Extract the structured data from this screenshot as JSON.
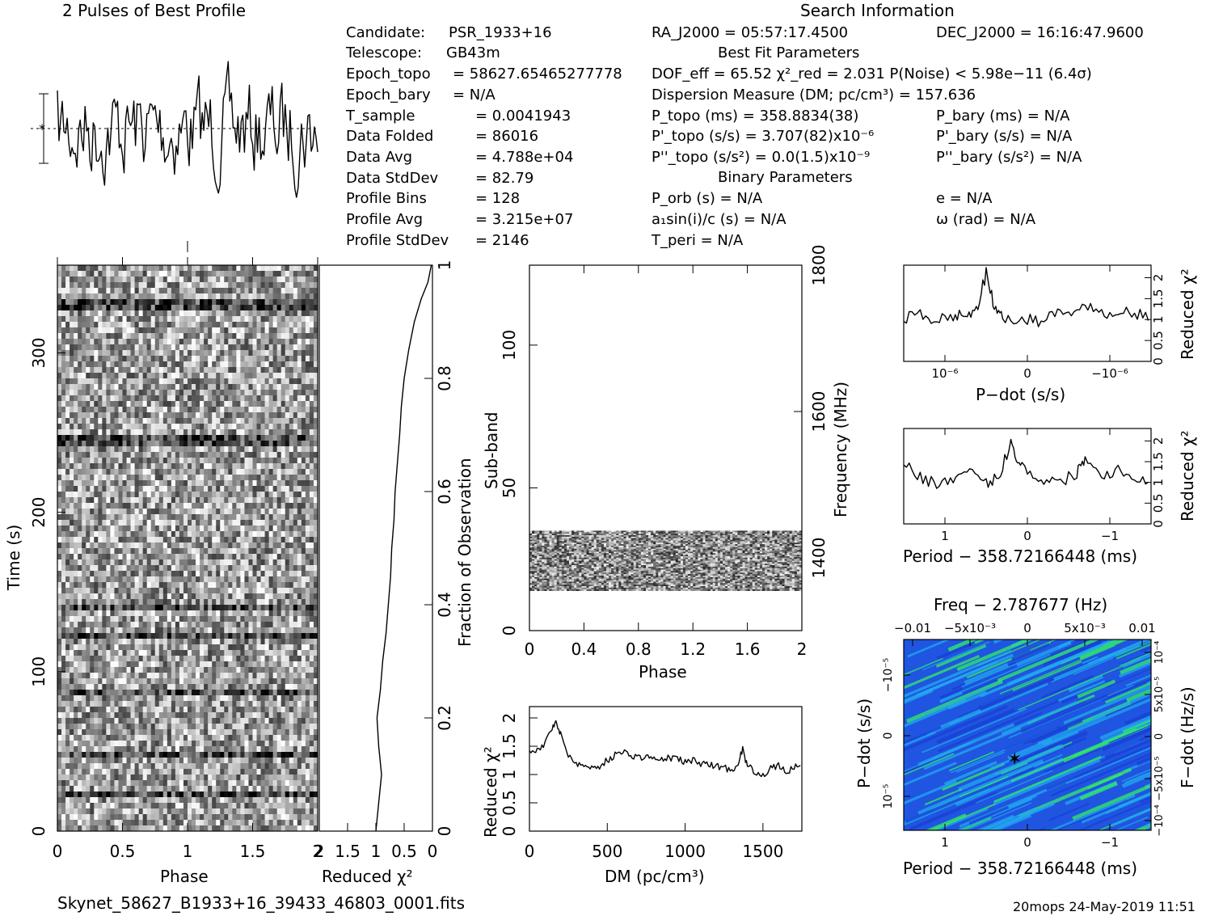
{
  "header": {
    "profile_title": "2 Pulses of Best Profile",
    "search_title": "Search Information",
    "best_fit_title": "Best Fit Parameters",
    "binary_title": "Binary Parameters"
  },
  "info_left": [
    {
      "label": "Candidate:",
      "value": "PSR_1933+16"
    },
    {
      "label": "Telescope:",
      "value": "GB43m"
    },
    {
      "label": "Epoch_topo",
      "value": "= 58627.65465277778"
    },
    {
      "label": "Epoch_bary",
      "value": "= N/A"
    },
    {
      "label": "T_sample",
      "value": "=  0.0041943"
    },
    {
      "label": "Data Folded",
      "value": "=  86016"
    },
    {
      "label": "Data Avg",
      "value": "=  4.788e+04"
    },
    {
      "label": "Data StdDev",
      "value": "=  82.79"
    },
    {
      "label": "Profile Bins",
      "value": "=  128"
    },
    {
      "label": "Profile Avg",
      "value": "=  3.215e+07"
    },
    {
      "label": "Profile StdDev",
      "value": "=  2146"
    }
  ],
  "info_right": {
    "ra": "RA_J2000 = 05:57:17.4500",
    "dec": "DEC_J2000 = 16:16:47.9600",
    "dof": "DOF_eff = 65.52  χ²_red = 2.031  P(Noise) < 5.98e−11   (6.4σ)",
    "dm": "Dispersion Measure (DM; pc/cm³) = 157.636",
    "p_topo": "P_topo (ms) =  358.8834(38)",
    "pd_topo": "P'_topo (s/s) =  3.707(82)x10⁻⁶",
    "pdd_topo": "P''_topo (s/s²) = 0.0(1.5)x10⁻⁹",
    "p_bary": "P_bary (ms) = N/A",
    "pd_bary": "P'_bary (s/s) = N/A",
    "pdd_bary": "P''_bary (s/s²) = N/A",
    "p_orb": "P_orb (s) = N/A",
    "a1sini": "a₁sin(i)/c (s) = N/A",
    "t_peri": "T_peri = N/A",
    "ecc": "e = N/A",
    "omega": "ω (rad) = N/A"
  },
  "footer": {
    "filename": "Skynet_58627_B1933+16_39433_46803_0001.fits",
    "stamp": "20mops 24-May-2019 11:51"
  },
  "chart_data": [
    {
      "type": "line",
      "title": "2 Pulses of Best Profile",
      "xlabel": "",
      "ylabel": "",
      "note": "noisy profile spanning 2 pulses; amplitudes in profile sigma"
    },
    {
      "type": "heatmap",
      "xlabel": "Phase",
      "ylabel": "Time (s)",
      "xlim": [
        0,
        2
      ],
      "ylim": [
        0,
        355
      ],
      "x_ticks": [
        "0",
        "0.5",
        "1",
        "1.5",
        "2"
      ],
      "y_ticks": [
        "0",
        "100",
        "200",
        "300"
      ],
      "colormap": "grayscale"
    },
    {
      "type": "line",
      "xlabel": "Reduced χ²",
      "ylabel": "Fraction of Observation",
      "xlim": [
        2,
        0
      ],
      "ylim": [
        0,
        1
      ],
      "x_ticks": [
        "2",
        "1.5",
        "1",
        "0.5",
        "0"
      ],
      "y_ticks": [
        "0",
        "0.2",
        "0.4",
        "0.6",
        "0.8",
        "1"
      ],
      "x": [
        1.0,
        0.95,
        0.9,
        0.95,
        0.98,
        0.92,
        0.88,
        0.82,
        0.78,
        0.74,
        0.72,
        0.68,
        0.66,
        0.62,
        0.58,
        0.55,
        0.5,
        0.42,
        0.32,
        0.2,
        0.08,
        0.02
      ],
      "y": [
        0.0,
        0.05,
        0.1,
        0.15,
        0.2,
        0.25,
        0.3,
        0.35,
        0.4,
        0.45,
        0.5,
        0.55,
        0.6,
        0.65,
        0.7,
        0.75,
        0.8,
        0.85,
        0.9,
        0.94,
        0.97,
        1.0
      ]
    },
    {
      "type": "heatmap",
      "xlabel": "Phase",
      "ylabel": "Sub-band",
      "y2label": "Frequency (MHz)",
      "xlim": [
        0,
        2
      ],
      "ylim": [
        0,
        128
      ],
      "x_ticks": [
        "0",
        "0.4",
        "0.8",
        "1.2",
        "1.6",
        "2"
      ],
      "y_ticks": [
        "0",
        "50",
        "100"
      ],
      "y2_ticks": [
        "1400",
        "1600",
        "1800"
      ],
      "populated_subbands": [
        14,
        35
      ],
      "colormap": "grayscale"
    },
    {
      "type": "line",
      "xlabel": "DM (pc/cm³)",
      "ylabel": "Reduced χ²",
      "xlim": [
        0,
        1750
      ],
      "ylim": [
        0,
        2.2
      ],
      "x_ticks": [
        "0",
        "500",
        "1000",
        "1500"
      ],
      "y_ticks": [
        "0",
        "0.5",
        "1",
        "1.5",
        "2"
      ],
      "x": [
        0,
        50,
        100,
        140,
        170,
        200,
        250,
        300,
        350,
        400,
        450,
        500,
        550,
        600,
        650,
        700,
        750,
        800,
        850,
        900,
        950,
        1000,
        1050,
        1100,
        1150,
        1200,
        1250,
        1300,
        1340,
        1370,
        1400,
        1450,
        1500,
        1550,
        1600,
        1650,
        1700,
        1750
      ],
      "y": [
        1.45,
        1.42,
        1.55,
        1.8,
        1.95,
        1.7,
        1.35,
        1.2,
        1.15,
        1.12,
        1.15,
        1.25,
        1.35,
        1.4,
        1.35,
        1.3,
        1.32,
        1.28,
        1.25,
        1.3,
        1.28,
        1.22,
        1.25,
        1.2,
        1.18,
        1.15,
        1.12,
        1.08,
        1.2,
        1.45,
        1.15,
        1.05,
        1.0,
        1.1,
        1.15,
        1.05,
        1.12,
        1.15
      ]
    },
    {
      "type": "line",
      "xlabel": "P−dot (s/s)",
      "ylabel": "Reduced χ²",
      "ylim": [
        0,
        2.3
      ],
      "x_ticks": [
        "10⁻⁶",
        "0",
        "−10⁻⁶"
      ],
      "y_ticks": [
        "0",
        "0.5",
        "1",
        "1.5",
        "2"
      ],
      "x": [
        1.5,
        1.3,
        1.1,
        0.9,
        0.75,
        0.62,
        0.5,
        0.4,
        0.3,
        0.1,
        -0.1,
        -0.3,
        -0.5,
        -0.7,
        -0.9,
        -1.1,
        -1.3,
        -1.5
      ],
      "y": [
        1.05,
        1.1,
        1.0,
        1.05,
        1.15,
        1.2,
        2.1,
        1.3,
        1.0,
        1.05,
        0.95,
        1.1,
        1.2,
        1.35,
        1.1,
        1.25,
        1.15,
        1.05
      ]
    },
    {
      "type": "line",
      "xlabel": "Period − 358.72166448 (ms)",
      "ylabel": "Reduced χ²",
      "ylim": [
        0,
        2.3
      ],
      "x_ticks": [
        "1",
        "0",
        "−1"
      ],
      "y_ticks": [
        "0",
        "0.5",
        "1",
        "1.5",
        "2"
      ],
      "x": [
        1.5,
        1.3,
        1.1,
        0.9,
        0.7,
        0.5,
        0.35,
        0.2,
        0.1,
        0.0,
        -0.2,
        -0.4,
        -0.6,
        -0.7,
        -0.9,
        -1.1,
        -1.3,
        -1.5
      ],
      "y": [
        1.5,
        1.1,
        1.0,
        1.05,
        1.2,
        1.0,
        1.1,
        2.0,
        1.45,
        1.3,
        1.05,
        1.0,
        1.25,
        1.6,
        1.2,
        1.3,
        1.15,
        1.0
      ]
    },
    {
      "type": "heatmap",
      "title": "Freq − 2.787677 (Hz)",
      "xlabel": "Period − 358.72166448 (ms)",
      "ylabel": "P−dot (s/s)",
      "y2label": "F−dot (Hz/s)",
      "x_ticks": [
        "1",
        "0",
        "−1"
      ],
      "x2_ticks": [
        "−0.01",
        "−5x10⁻³",
        "0",
        "5x10⁻³",
        "0.01"
      ],
      "y_ticks": [
        "10⁻⁵",
        "0",
        "−10⁻⁵"
      ],
      "y2_ticks": [
        "−10⁻⁴",
        "−5x10⁻⁵",
        "0",
        "5x10⁻⁵",
        "10⁻⁴"
      ],
      "colormap": "blue-cyan-green",
      "colors": {
        "low": "#1a3fd6",
        "mid": "#22a9f0",
        "high": "#33ee66"
      }
    }
  ]
}
